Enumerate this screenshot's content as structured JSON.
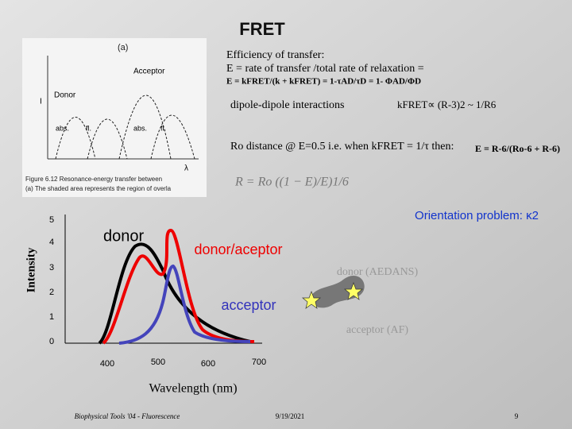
{
  "header": {
    "title": "FRET"
  },
  "efficiency": {
    "heading": "Efficiency of transfer:",
    "definition": "E = rate of transfer /total rate of relaxation =",
    "equation": "E = kFRET/(k + kFRET) = 1-τAD/τD = 1- ΦAD/ΦD"
  },
  "dipole": {
    "label": "dipole-dipole interactions",
    "proportionality": "kFRET∝ (R-3)2 ~ 1/R6"
  },
  "r0": {
    "text": "Ro distance @ E=0.5 i.e. when kFRET = 1/τ then:",
    "equation": "E = R-6/(Ro-6 + R-6)",
    "formula": "R = Ro ((1 − E)/E)1/6"
  },
  "figure": {
    "panel": "(a)",
    "labels": [
      "Acceptor",
      "Donor",
      "abs.",
      "fl.",
      "abs.",
      "fl.",
      "I",
      "λ"
    ],
    "caption": [
      "Figure 6.12  Resonance-energy transfer between",
      "(a) The shaded area represents the region of overla"
    ]
  },
  "spectrum": {
    "y_label": "Intensity",
    "x_label": "Wavelength (nm)",
    "y_ticks": [
      "5",
      "4",
      "3",
      "2",
      "1",
      "0"
    ],
    "x_ticks": [
      "400",
      "500",
      "600",
      "700"
    ],
    "curve_labels": [
      "donor",
      "donor/aceptor",
      "acceptor"
    ]
  },
  "orientation": {
    "title": "Orientation problem: κ2",
    "donor": "donor (AEDANS)",
    "acceptor": "acceptor (AF)"
  },
  "footer": {
    "left": "Biophysical Tools '04 - Fluorescence",
    "date": "9/19/2021",
    "page": "9"
  }
}
